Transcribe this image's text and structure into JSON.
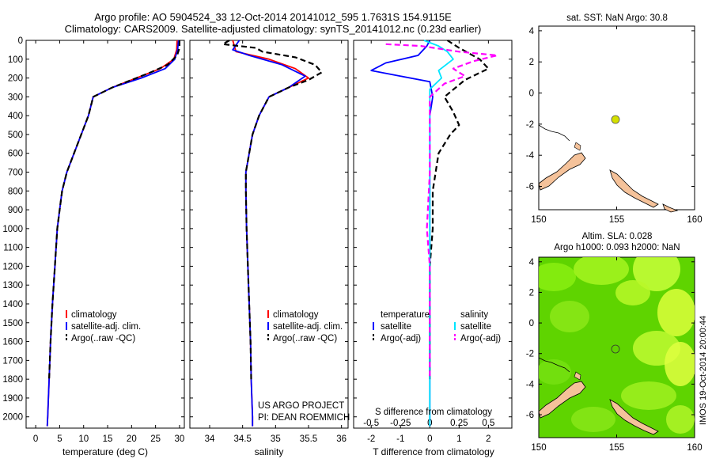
{
  "header": {
    "line1": "Argo profile: AO 5904524_33 12-Oct-2014 20141012_595 1.7631S 154.9115E",
    "line2": "Climatology: CARS2009. Satellite-adjusted climatology: synTS_20141012.nc (0.23d earlier)"
  },
  "side_label": "IMOS 19-Oct-2014 20:00:44",
  "colors": {
    "climatology": "#ff0000",
    "satellite": "#0000ff",
    "argo": "#000000",
    "sat_salinity": "#00e5ff",
    "argo_salinity": "#ff00ff",
    "land": "#f5c29a",
    "float_marker": "#d4e000",
    "sla_base": "#5fd400",
    "sla_high": "#e8ff40"
  },
  "chart_data": [
    {
      "type": "line",
      "name": "temperature",
      "xlabel": "temperature (deg C)",
      "ylabel": "",
      "xlim": [
        -2,
        31
      ],
      "ylim": [
        0,
        2060
      ],
      "y_inverted": true,
      "xticks": [
        0,
        5,
        10,
        15,
        20,
        25,
        30
      ],
      "yticks": [
        0,
        100,
        200,
        300,
        400,
        500,
        600,
        700,
        800,
        900,
        1000,
        1100,
        1200,
        1300,
        1400,
        1500,
        1600,
        1700,
        1800,
        1900,
        2000
      ],
      "legend": [
        "climatology",
        "satellite-adj. clim.",
        "Argo(..raw -QC)"
      ],
      "legend_placement": "lower-center",
      "series": [
        {
          "name": "climatology",
          "style": "solid",
          "color": "#ff0000",
          "points": [
            [
              29.5,
              0
            ],
            [
              29.4,
              50
            ],
            [
              28.8,
              100
            ],
            [
              26,
              150
            ],
            [
              21,
              200
            ],
            [
              16,
              250
            ],
            [
              12,
              300
            ],
            [
              11,
              400
            ],
            [
              9.5,
              500
            ],
            [
              8,
              600
            ],
            [
              6.5,
              700
            ],
            [
              5.5,
              800
            ],
            [
              5,
              900
            ],
            [
              4.5,
              1000
            ],
            [
              4,
              1200
            ],
            [
              3.5,
              1400
            ],
            [
              3.1,
              1600
            ],
            [
              2.8,
              1800
            ],
            [
              2.5,
              2000
            ],
            [
              2.4,
              2050
            ]
          ]
        },
        {
          "name": "satellite-adj. clim.",
          "style": "solid",
          "color": "#0000ff",
          "points": [
            [
              29.8,
              0
            ],
            [
              29.6,
              50
            ],
            [
              29,
              100
            ],
            [
              27,
              150
            ],
            [
              22,
              200
            ],
            [
              16,
              250
            ],
            [
              12,
              300
            ],
            [
              11,
              400
            ],
            [
              9.5,
              500
            ],
            [
              8,
              600
            ],
            [
              6.5,
              700
            ],
            [
              5.5,
              800
            ],
            [
              5,
              900
            ],
            [
              4.5,
              1000
            ],
            [
              4,
              1200
            ],
            [
              3.5,
              1400
            ],
            [
              3.1,
              1600
            ],
            [
              2.8,
              1800
            ],
            [
              2.5,
              2000
            ],
            [
              2.4,
              2050
            ]
          ]
        },
        {
          "name": "Argo(..raw -QC)",
          "style": "dashed",
          "color": "#000000",
          "points": [
            [
              30,
              0
            ],
            [
              30,
              40
            ],
            [
              29.5,
              80
            ],
            [
              27.5,
              130
            ],
            [
              24,
              170
            ],
            [
              21,
              200
            ],
            [
              16,
              250
            ],
            [
              12,
              300
            ],
            [
              11,
              400
            ],
            [
              9.5,
              500
            ],
            [
              8,
              600
            ],
            [
              6.5,
              700
            ],
            [
              5.5,
              800
            ],
            [
              5,
              900
            ],
            [
              4.5,
              1000
            ],
            [
              4,
              1200
            ],
            [
              3.5,
              1400
            ],
            [
              3.1,
              1600
            ],
            [
              2.8,
              1800
            ]
          ]
        }
      ]
    },
    {
      "type": "line",
      "name": "salinity",
      "xlabel": "salinity",
      "ylabel": "",
      "xlim": [
        33.7,
        36.1
      ],
      "ylim": [
        0,
        2060
      ],
      "y_inverted": true,
      "xticks": [
        34,
        34.5,
        35,
        35.5,
        36
      ],
      "legend": [
        "climatology",
        "satellite-adj. clim.",
        "Argo(..raw -QC)"
      ],
      "legend_placement": "lower-center",
      "annotation_line1": "US ARGO PROJECT",
      "annotation_line2": "PI: DEAN ROEMMICH",
      "series": [
        {
          "name": "climatology",
          "style": "solid",
          "color": "#ff0000",
          "points": [
            [
              34.35,
              0
            ],
            [
              34.4,
              60
            ],
            [
              34.9,
              100
            ],
            [
              35.3,
              150
            ],
            [
              35.5,
              200
            ],
            [
              35.2,
              250
            ],
            [
              34.9,
              300
            ],
            [
              34.75,
              400
            ],
            [
              34.65,
              500
            ],
            [
              34.6,
              600
            ],
            [
              34.55,
              700
            ],
            [
              34.55,
              800
            ],
            [
              34.56,
              1000
            ],
            [
              34.58,
              1200
            ],
            [
              34.6,
              1400
            ],
            [
              34.62,
              1600
            ],
            [
              34.63,
              1800
            ],
            [
              34.65,
              2000
            ],
            [
              34.65,
              2050
            ]
          ]
        },
        {
          "name": "satellite-adj. clim.",
          "style": "solid",
          "color": "#0000ff",
          "points": [
            [
              34.45,
              0
            ],
            [
              34.35,
              50
            ],
            [
              34.6,
              80
            ],
            [
              35.1,
              130
            ],
            [
              35.45,
              190
            ],
            [
              35.2,
              250
            ],
            [
              34.9,
              300
            ],
            [
              34.75,
              400
            ],
            [
              34.65,
              500
            ],
            [
              34.6,
              600
            ],
            [
              34.55,
              700
            ],
            [
              34.55,
              800
            ],
            [
              34.56,
              1000
            ],
            [
              34.58,
              1200
            ],
            [
              34.6,
              1400
            ],
            [
              34.62,
              1600
            ],
            [
              34.63,
              1800
            ],
            [
              34.65,
              2000
            ],
            [
              34.65,
              2050
            ]
          ]
        },
        {
          "name": "Argo(..raw -QC)",
          "style": "dashed",
          "color": "#000000",
          "points": [
            [
              34.3,
              0
            ],
            [
              34.2,
              20
            ],
            [
              34.7,
              40
            ],
            [
              34.8,
              60
            ],
            [
              35.3,
              90
            ],
            [
              35.6,
              130
            ],
            [
              35.7,
              170
            ],
            [
              35.5,
              210
            ],
            [
              35.2,
              250
            ],
            [
              34.9,
              300
            ],
            [
              34.75,
              400
            ],
            [
              34.65,
              500
            ],
            [
              34.6,
              600
            ],
            [
              34.55,
              700
            ],
            [
              34.55,
              800
            ],
            [
              34.56,
              1000
            ],
            [
              34.58,
              1200
            ],
            [
              34.6,
              1400
            ],
            [
              34.62,
              1600
            ],
            [
              34.63,
              1800
            ]
          ]
        }
      ]
    },
    {
      "type": "line",
      "name": "differences",
      "xlabel": "T difference from climatology",
      "xlabel_top": "S difference from climatology",
      "xlim": [
        -2.6,
        2.8
      ],
      "ylim": [
        0,
        2060
      ],
      "y_inverted": true,
      "xticks": [
        -2,
        -1,
        0,
        1,
        2
      ],
      "sticks_labels": [
        "-0.5",
        "-0.25",
        "0",
        "0.25",
        "0.5"
      ],
      "sticks_positions": [
        -2,
        -1,
        0,
        1,
        2
      ],
      "legend_temperature_title": "temperature",
      "legend_salinity_title": "salinity",
      "legend": [
        "satellite",
        "Argo(-adj)",
        "satellite",
        "Argo(-adj)"
      ],
      "legend_placement": "lower-center",
      "series": [
        {
          "name": "temperature satellite",
          "style": "solid",
          "color": "#0000ff",
          "points": [
            [
              0,
              0
            ],
            [
              -0.1,
              30
            ],
            [
              -0.4,
              80
            ],
            [
              -1.5,
              120
            ],
            [
              -2.0,
              160
            ],
            [
              -1.0,
              190
            ],
            [
              0,
              220
            ],
            [
              0.1,
              300
            ],
            [
              0,
              400
            ],
            [
              0,
              600
            ],
            [
              0,
              1000
            ],
            [
              0,
              1500
            ],
            [
              0,
              2050
            ]
          ]
        },
        {
          "name": "temperature Argo(-adj)",
          "style": "dashed",
          "color": "#000000",
          "points": [
            [
              0.6,
              0
            ],
            [
              1.0,
              40
            ],
            [
              1.7,
              100
            ],
            [
              2.0,
              150
            ],
            [
              1.2,
              210
            ],
            [
              0.5,
              300
            ],
            [
              0.8,
              380
            ],
            [
              1.0,
              450
            ],
            [
              0.7,
              500
            ],
            [
              0.3,
              600
            ],
            [
              0.1,
              800
            ],
            [
              0.1,
              1000
            ],
            [
              0,
              1200
            ],
            [
              0,
              1400
            ],
            [
              0,
              1600
            ],
            [
              0,
              1800
            ]
          ]
        },
        {
          "name": "salinity satellite",
          "style": "solid",
          "color": "#00e5ff",
          "points": [
            [
              -0.2,
              0
            ],
            [
              0.3,
              30
            ],
            [
              0.6,
              60
            ],
            [
              0.8,
              100
            ],
            [
              0.3,
              160
            ],
            [
              0.4,
              200
            ],
            [
              0,
              260
            ],
            [
              0,
              400
            ],
            [
              0,
              600
            ],
            [
              0,
              1000
            ],
            [
              0,
              1500
            ],
            [
              0,
              2050
            ]
          ]
        },
        {
          "name": "salinity Argo(-adj)",
          "style": "dashed",
          "color": "#ff00ff",
          "points": [
            [
              -1.5,
              20
            ],
            [
              -0.3,
              30
            ],
            [
              1.0,
              60
            ],
            [
              2.3,
              80
            ],
            [
              1.5,
              110
            ],
            [
              0.8,
              150
            ],
            [
              1.2,
              190
            ],
            [
              0.5,
              230
            ],
            [
              0,
              300
            ],
            [
              0,
              500
            ],
            [
              0,
              700
            ],
            [
              -0.1,
              1000
            ],
            [
              0,
              1200
            ],
            [
              0,
              1400
            ],
            [
              0,
              1600
            ],
            [
              0,
              1800
            ]
          ]
        }
      ]
    },
    {
      "type": "scatter",
      "name": "sst-map",
      "title": "sat. SST: NaN Argo: 30.8",
      "xlim": [
        150,
        160
      ],
      "ylim": [
        -7.5,
        4.3
      ],
      "xticks": [
        150,
        155,
        160
      ],
      "yticks": [
        4,
        2,
        0,
        -2,
        -4,
        -6
      ],
      "points": [
        {
          "x": 154.9115,
          "y": -1.7631,
          "label": "Argo float"
        }
      ]
    },
    {
      "type": "heatmap",
      "name": "sla-map",
      "title": "Altim. SLA: 0.028",
      "subtitle": "Argo h1000: 0.093 h2000: NaN",
      "xlim": [
        150,
        160
      ],
      "ylim": [
        -7.5,
        4.3
      ],
      "xticks": [
        150,
        155,
        160
      ],
      "yticks": [
        4,
        2,
        0,
        -2,
        -4,
        -6
      ],
      "points": [
        {
          "x": 154.9115,
          "y": -1.7631,
          "label": "Argo float"
        }
      ]
    }
  ]
}
